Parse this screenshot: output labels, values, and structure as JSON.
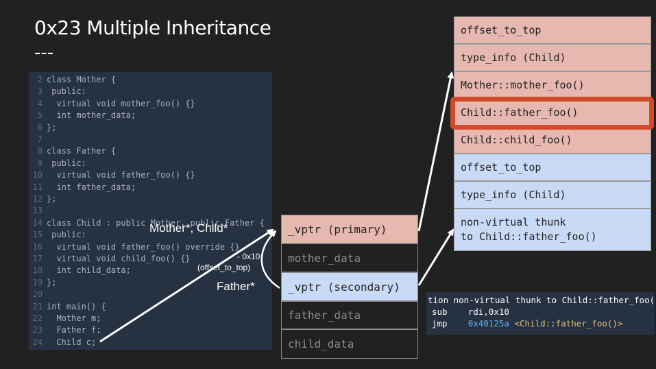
{
  "title": "0x23  Multiple Inheritance",
  "dashes": "---",
  "code": [
    {
      "n": "2",
      "t": "class Mother {"
    },
    {
      "n": "3",
      "t": " public:"
    },
    {
      "n": "4",
      "t": "  virtual void mother_foo() {}"
    },
    {
      "n": "5",
      "t": "  int mother_data;"
    },
    {
      "n": "6",
      "t": "};"
    },
    {
      "n": "7",
      "t": ""
    },
    {
      "n": "8",
      "t": "class Father {"
    },
    {
      "n": "9",
      "t": " public:"
    },
    {
      "n": "10",
      "t": "  virtual void father_foo() {}"
    },
    {
      "n": "11",
      "t": "  int father_data;"
    },
    {
      "n": "12",
      "t": "};"
    },
    {
      "n": "13",
      "t": ""
    },
    {
      "n": "14",
      "t": "class Child : public Mother, public Father {"
    },
    {
      "n": "15",
      "t": " public:"
    },
    {
      "n": "16",
      "t": "  virtual void father_foo() override {}"
    },
    {
      "n": "17",
      "t": "  virtual void child_foo() {}"
    },
    {
      "n": "18",
      "t": "  int child_data;"
    },
    {
      "n": "19",
      "t": "};"
    },
    {
      "n": "20",
      "t": ""
    },
    {
      "n": "21",
      "t": "int main() {"
    },
    {
      "n": "22",
      "t": "  Mother m;"
    },
    {
      "n": "23",
      "t": "  Father f;"
    },
    {
      "n": "24",
      "t": "  Child c;"
    }
  ],
  "object_layout": [
    {
      "label": "_vptr (primary)",
      "style": "pink"
    },
    {
      "label": "mother_data",
      "style": "dark"
    },
    {
      "label": "_vptr (secondary)",
      "style": "blue"
    },
    {
      "label": "father_data",
      "style": "dark"
    },
    {
      "label": "child_data",
      "style": "dark"
    }
  ],
  "vtable_primary": [
    "offset_to_top",
    "type_info (Child)",
    "Mother::mother_foo()",
    "Child::father_foo()",
    "Child::child_foo()"
  ],
  "vtable_secondary": [
    "offset_to_top",
    "type_info (Child)",
    "non-virtual thunk",
    "to Child::father_foo()"
  ],
  "labels": {
    "mother_child_ptr": "Mother*, Child*",
    "minus_offset": "- 0x10",
    "offset_to_top": "(offset_to_top)",
    "father_ptr": "Father*"
  },
  "asm": {
    "header": "tion non-virtual thunk to Child::father_foo():",
    "line1_op": "sub",
    "line1_args": "rdi,0x10",
    "line2_op": "jmp",
    "line2_addr": "0x40125a",
    "line2_sym": "<Child::father_foo()>"
  },
  "colors": {
    "background": "#212121",
    "code_bg": "#263241",
    "pink": "#e6b8b0",
    "blue": "#c9daf6",
    "highlight": "#d14a2a"
  }
}
